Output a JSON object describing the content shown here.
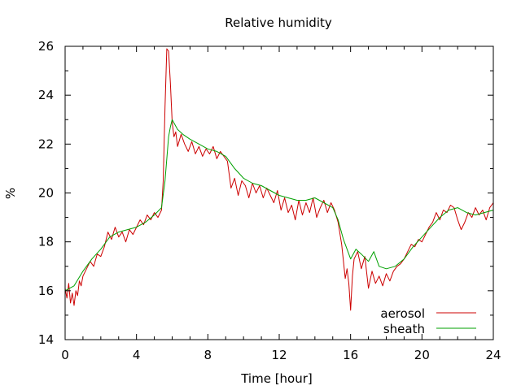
{
  "chart_data": {
    "type": "line",
    "title": "Relative humidity",
    "xlabel": "Time [hour]",
    "ylabel": "%",
    "xlim": [
      0,
      24
    ],
    "ylim": [
      14,
      26
    ],
    "xticks": [
      0,
      4,
      8,
      12,
      16,
      20,
      24
    ],
    "yticks": [
      14,
      16,
      18,
      20,
      22,
      24,
      26
    ],
    "grid": false,
    "legend_position": "bottom-right",
    "series": [
      {
        "name": "aerosol",
        "color": "#cc0000",
        "x": [
          0,
          0.1,
          0.2,
          0.3,
          0.4,
          0.5,
          0.6,
          0.7,
          0.8,
          0.9,
          1.0,
          1.2,
          1.4,
          1.6,
          1.8,
          2.0,
          2.2,
          2.4,
          2.6,
          2.8,
          3.0,
          3.2,
          3.4,
          3.6,
          3.8,
          4.0,
          4.2,
          4.4,
          4.6,
          4.8,
          5.0,
          5.2,
          5.4,
          5.5,
          5.6,
          5.7,
          5.8,
          5.9,
          6.0,
          6.1,
          6.2,
          6.3,
          6.5,
          6.7,
          6.9,
          7.1,
          7.3,
          7.5,
          7.7,
          7.9,
          8.1,
          8.3,
          8.5,
          8.7,
          8.9,
          9.1,
          9.3,
          9.5,
          9.7,
          9.9,
          10.1,
          10.3,
          10.5,
          10.7,
          10.9,
          11.1,
          11.3,
          11.5,
          11.7,
          11.9,
          12.1,
          12.3,
          12.5,
          12.7,
          12.9,
          13.1,
          13.3,
          13.5,
          13.7,
          13.9,
          14.1,
          14.3,
          14.5,
          14.7,
          14.9,
          15.1,
          15.3,
          15.5,
          15.6,
          15.7,
          15.8,
          15.9,
          16.0,
          16.1,
          16.2,
          16.4,
          16.6,
          16.8,
          17.0,
          17.2,
          17.4,
          17.6,
          17.8,
          18.0,
          18.2,
          18.4,
          18.6,
          18.8,
          19.0,
          19.2,
          19.4,
          19.6,
          19.8,
          20.0,
          20.2,
          20.4,
          20.6,
          20.8,
          21.0,
          21.2,
          21.4,
          21.6,
          21.8,
          22.0,
          22.2,
          22.4,
          22.6,
          22.8,
          23.0,
          23.2,
          23.4,
          23.6,
          23.8,
          24.0
        ],
        "y": [
          16.1,
          15.7,
          16.3,
          15.5,
          15.9,
          15.4,
          16.0,
          15.8,
          16.4,
          16.2,
          16.6,
          16.9,
          17.2,
          17.0,
          17.5,
          17.4,
          17.8,
          18.4,
          18.1,
          18.6,
          18.2,
          18.4,
          18.0,
          18.5,
          18.3,
          18.6,
          18.9,
          18.7,
          19.1,
          18.9,
          19.2,
          19.0,
          19.3,
          20.5,
          23.5,
          25.9,
          25.8,
          24.5,
          22.9,
          22.3,
          22.5,
          21.9,
          22.4,
          22.0,
          21.7,
          22.1,
          21.6,
          21.9,
          21.5,
          21.8,
          21.6,
          21.9,
          21.4,
          21.7,
          21.5,
          21.3,
          20.2,
          20.6,
          19.9,
          20.5,
          20.3,
          19.8,
          20.4,
          20.0,
          20.3,
          19.8,
          20.2,
          19.9,
          19.6,
          20.1,
          19.3,
          19.8,
          19.2,
          19.5,
          18.9,
          19.7,
          19.1,
          19.6,
          19.2,
          19.8,
          19.0,
          19.4,
          19.7,
          19.2,
          19.6,
          19.3,
          18.8,
          17.9,
          17.2,
          16.5,
          16.9,
          16.3,
          15.2,
          16.6,
          17.3,
          17.6,
          16.9,
          17.4,
          16.1,
          16.8,
          16.3,
          16.6,
          16.2,
          16.7,
          16.4,
          16.8,
          17.0,
          17.1,
          17.3,
          17.6,
          17.9,
          17.8,
          18.1,
          18.0,
          18.3,
          18.6,
          18.8,
          19.2,
          18.9,
          19.3,
          19.2,
          19.5,
          19.4,
          18.9,
          18.5,
          18.8,
          19.2,
          19.0,
          19.4,
          19.1,
          19.3,
          18.9,
          19.4,
          19.6
        ],
        "label": "aerosol"
      },
      {
        "name": "sheath",
        "color": "#00a000",
        "x": [
          0,
          0.5,
          1.0,
          1.5,
          2.0,
          2.5,
          3.0,
          3.5,
          4.0,
          4.5,
          5.0,
          5.4,
          5.6,
          5.8,
          5.9,
          6.0,
          6.3,
          6.6,
          7.0,
          7.5,
          8.0,
          8.5,
          9.0,
          9.5,
          10.0,
          10.5,
          11.0,
          11.5,
          12.0,
          12.5,
          13.0,
          13.5,
          14.0,
          14.5,
          15.0,
          15.3,
          15.6,
          16.0,
          16.3,
          16.6,
          17.0,
          17.3,
          17.6,
          18.0,
          18.5,
          19.0,
          19.5,
          20.0,
          20.5,
          21.0,
          21.5,
          22.0,
          22.5,
          23.0,
          23.5,
          24.0
        ],
        "y": [
          16.0,
          16.2,
          16.8,
          17.3,
          17.7,
          18.2,
          18.4,
          18.5,
          18.6,
          18.8,
          19.1,
          19.4,
          20.5,
          22.3,
          22.7,
          23.0,
          22.6,
          22.4,
          22.2,
          22.0,
          21.8,
          21.7,
          21.5,
          21.0,
          20.6,
          20.4,
          20.3,
          20.1,
          19.9,
          19.8,
          19.7,
          19.7,
          19.8,
          19.6,
          19.4,
          18.9,
          18.1,
          17.3,
          17.7,
          17.5,
          17.2,
          17.6,
          17.0,
          16.9,
          17.0,
          17.3,
          17.8,
          18.2,
          18.6,
          19.0,
          19.3,
          19.4,
          19.2,
          19.1,
          19.2,
          19.3
        ],
        "label": "sheath"
      }
    ]
  }
}
